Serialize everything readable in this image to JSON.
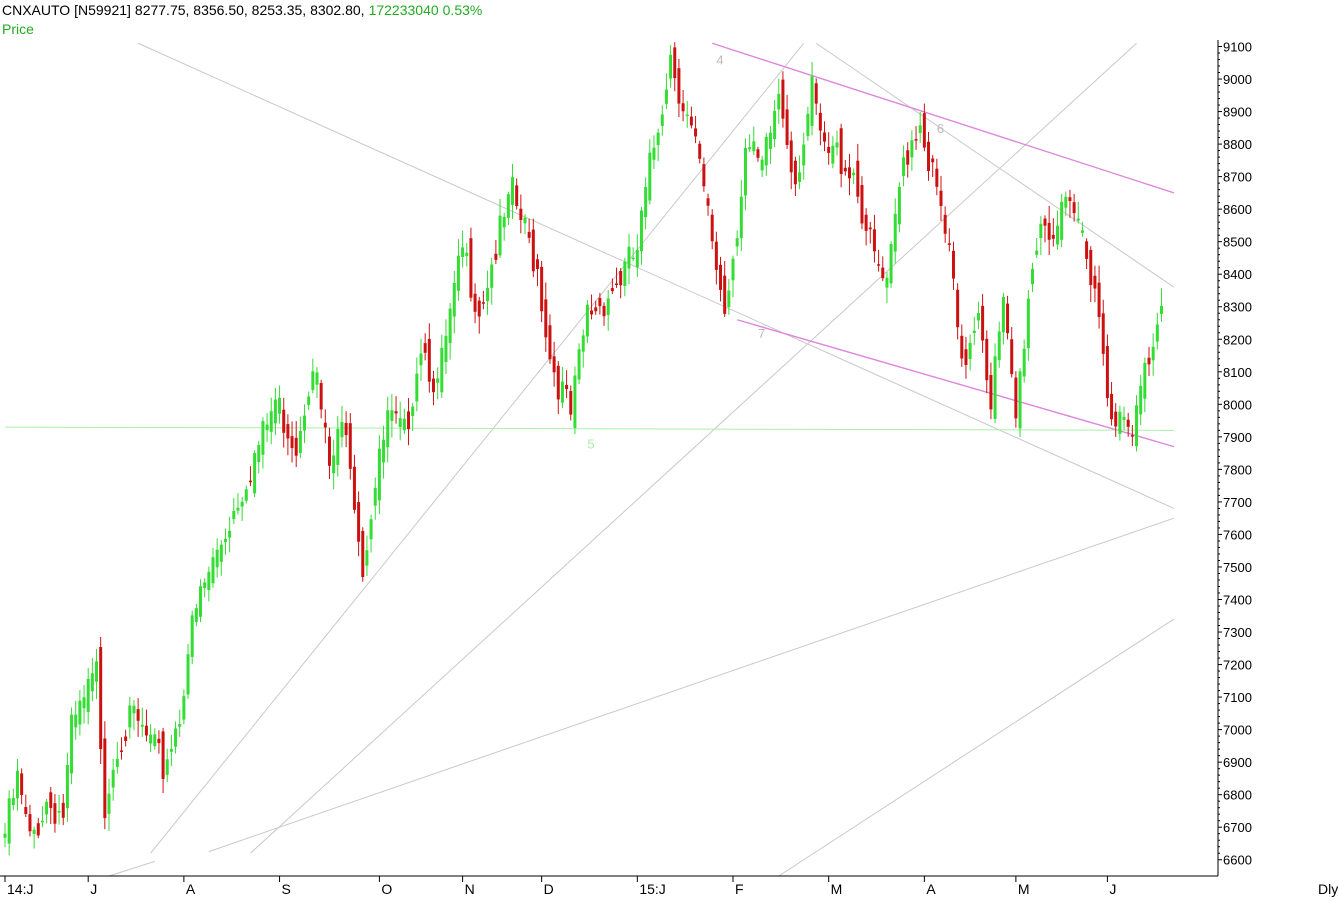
{
  "header": {
    "symbol": "CNXAUTO [N59921]",
    "ohlc": "8277.75, 8356.50, 8253.35, 8302.80,",
    "volume": "172233040",
    "change": "0.53%",
    "price_label": "Price",
    "interval": "Dly"
  },
  "colors": {
    "up": "#33dd33",
    "down": "#cc1111",
    "trendline": "#c8c8c8",
    "channel": "#dd88dd",
    "support": "#aaeeaa",
    "text": "#000000",
    "header_green": "#22aa22"
  },
  "chart_data": {
    "type": "candlestick",
    "ylim": [
      6550,
      9120
    ],
    "y_ticks": [
      6600,
      6700,
      6800,
      6900,
      7000,
      7100,
      7200,
      7300,
      7400,
      7500,
      7600,
      7700,
      7800,
      7900,
      8000,
      8100,
      8200,
      8300,
      8400,
      8500,
      8600,
      8700,
      8800,
      8900,
      9000,
      9100
    ],
    "x_labels": [
      {
        "label": "14:J",
        "bar": 0
      },
      {
        "label": "J",
        "bar": 20
      },
      {
        "label": "A",
        "bar": 43
      },
      {
        "label": "S",
        "bar": 66
      },
      {
        "label": "O",
        "bar": 90
      },
      {
        "label": "N",
        "bar": 110
      },
      {
        "label": "D",
        "bar": 129
      },
      {
        "label": "15:J",
        "bar": 152
      },
      {
        "label": "F",
        "bar": 175
      },
      {
        "label": "M",
        "bar": 198
      },
      {
        "label": "A",
        "bar": 221
      },
      {
        "label": "M",
        "bar": 243
      },
      {
        "label": "J",
        "bar": 265
      }
    ],
    "pivots": [
      0,
      3,
      6,
      10,
      14,
      16,
      22,
      24,
      27,
      31,
      35,
      38,
      42,
      44,
      47,
      52,
      58,
      62,
      65,
      70,
      74,
      78,
      82,
      86,
      88,
      92,
      96,
      100,
      104,
      110,
      114,
      118,
      122,
      128,
      131,
      136,
      140,
      143,
      148,
      152,
      155,
      160,
      166,
      170,
      173,
      176,
      178,
      182,
      186,
      190,
      194,
      197,
      200,
      204,
      208,
      212,
      216,
      220,
      224,
      227,
      230,
      234,
      237,
      240,
      243,
      246,
      249,
      252,
      255,
      258,
      262,
      265,
      268,
      271,
      273,
      276,
      278
    ],
    "pivot_values": [
      6680,
      6840,
      6650,
      6780,
      6740,
      6990,
      7170,
      6780,
      6970,
      7030,
      6950,
      6880,
      7050,
      7250,
      7410,
      7580,
      7780,
      7900,
      8010,
      7880,
      8150,
      7800,
      7960,
      7500,
      7680,
      7950,
      7900,
      8200,
      8050,
      8470,
      8300,
      8480,
      8640,
      8420,
      8150,
      7960,
      8280,
      8310,
      8390,
      8470,
      8720,
      9080,
      8780,
      8500,
      8290,
      8560,
      8790,
      8710,
      8960,
      8700,
      8950,
      8760,
      8770,
      8720,
      8480,
      8340,
      8760,
      8880,
      8640,
      8460,
      8090,
      8320,
      8020,
      8290,
      7950,
      8340,
      8580,
      8530,
      8580,
      8560,
      8380,
      8050,
      7940,
      7890,
      8040,
      8210,
      8303
    ],
    "ohlc_last": {
      "open": 8277.75,
      "high": 8356.5,
      "low": 8253.35,
      "close": 8302.8
    },
    "annotations": [
      {
        "label": "4",
        "bar": 171,
        "value": 9060
      },
      {
        "label": "5",
        "bar": 140,
        "value": 7880
      },
      {
        "label": "6",
        "bar": 224,
        "value": 8850
      },
      {
        "label": "7",
        "bar": 181,
        "value": 8220
      }
    ],
    "trendlines": [
      {
        "kind": "resistance",
        "from": {
          "bar": 32,
          "value": 9110
        },
        "to": {
          "bar": 281,
          "value": 7680
        }
      },
      {
        "kind": "fan",
        "from": {
          "bar": 35,
          "value": 6620
        },
        "to": {
          "bar": 192,
          "value": 9110
        }
      },
      {
        "kind": "fan",
        "from": {
          "bar": 59,
          "value": 6620
        },
        "to": {
          "bar": 272,
          "value": 9110
        }
      },
      {
        "kind": "fan",
        "from": {
          "bar": 49,
          "value": 6625
        },
        "to": {
          "bar": 281,
          "value": 7650
        }
      },
      {
        "kind": "fan",
        "from": {
          "bar": 25,
          "value": 6550
        },
        "to": {
          "bar": 36,
          "value": 6595
        }
      },
      {
        "kind": "fan",
        "from": {
          "bar": 186,
          "value": 6550
        },
        "to": {
          "bar": 281,
          "value": 7340
        }
      },
      {
        "kind": "resistance",
        "from": {
          "bar": 195,
          "value": 9110
        },
        "to": {
          "bar": 281,
          "value": 8360
        }
      },
      {
        "kind": "channel",
        "from": {
          "bar": 170,
          "value": 9110
        },
        "to": {
          "bar": 281,
          "value": 8650
        }
      },
      {
        "kind": "channel",
        "from": {
          "bar": 176,
          "value": 8260
        },
        "to": {
          "bar": 281,
          "value": 7870
        }
      },
      {
        "kind": "support",
        "from": {
          "bar": 0,
          "value": 7930
        },
        "to": {
          "bar": 281,
          "value": 7920
        }
      }
    ]
  }
}
